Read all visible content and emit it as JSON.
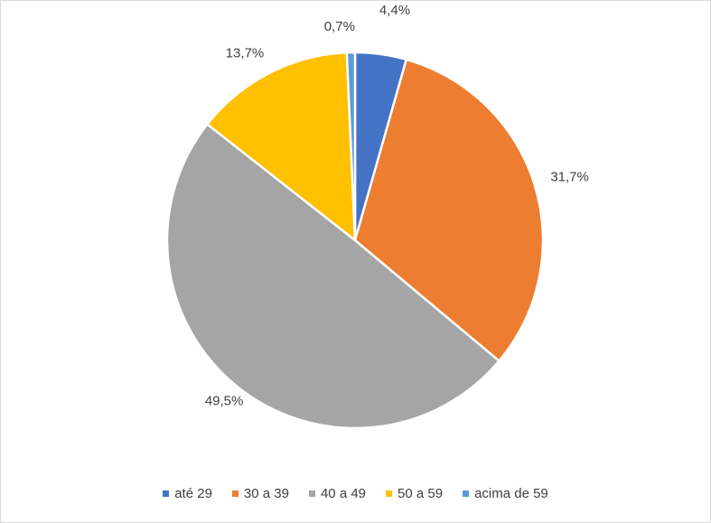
{
  "chart_data": {
    "type": "pie",
    "categories": [
      "até 29",
      "30 a 39",
      "40 a 49",
      "50 a 59",
      "acima de 59"
    ],
    "values": [
      4.4,
      31.7,
      49.5,
      13.7,
      0.7
    ],
    "labels": [
      "4,4%",
      "31,7%",
      "49,5%",
      "13,7%",
      "0,7%"
    ],
    "colors": [
      "#4472c4",
      "#ed7d31",
      "#a5a5a5",
      "#ffc000",
      "#5b9bd5"
    ],
    "title": "",
    "legend_position": "bottom",
    "start_angle": "top",
    "direction": "clockwise"
  }
}
